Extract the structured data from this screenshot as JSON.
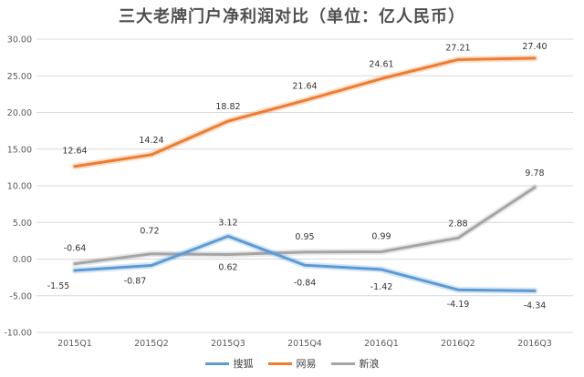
{
  "chart_data": {
    "type": "line",
    "title": "三大老牌门户净利润对比（单位：亿人民币）",
    "xlabel": "",
    "ylabel": "",
    "categories": [
      "2015Q1",
      "2015Q2",
      "2015Q3",
      "2015Q4",
      "2016Q1",
      "2016Q2",
      "2016Q3"
    ],
    "ylim": [
      -10,
      30
    ],
    "yticks": [
      "30.00",
      "25.00",
      "20.00",
      "15.00",
      "10.00",
      "5.00",
      "0.00",
      "-5.00",
      "-10.00"
    ],
    "grid": true,
    "legend_position": "bottom",
    "series": [
      {
        "name": "搜狐",
        "color": "#5b9bd5",
        "values": [
          -1.55,
          -0.87,
          3.12,
          -0.84,
          -1.42,
          -4.19,
          -4.34
        ],
        "labels": [
          "-1.55",
          "-0.87",
          "3.12",
          "-0.84",
          "-1.42",
          "-4.19",
          "-4.34"
        ]
      },
      {
        "name": "网易",
        "color": "#ed7d31",
        "values": [
          12.64,
          14.24,
          18.82,
          21.64,
          24.61,
          27.21,
          27.4
        ],
        "labels": [
          "12.64",
          "14.24",
          "18.82",
          "21.64",
          "24.61",
          "27.21",
          "27.40"
        ]
      },
      {
        "name": "新浪",
        "color": "#a5a5a5",
        "values": [
          -0.64,
          0.72,
          0.62,
          0.95,
          0.99,
          2.88,
          9.78
        ],
        "labels": [
          "-0.64",
          "0.72",
          "0.62",
          "0.95",
          "0.99",
          "2.88",
          "9.78"
        ]
      }
    ]
  }
}
